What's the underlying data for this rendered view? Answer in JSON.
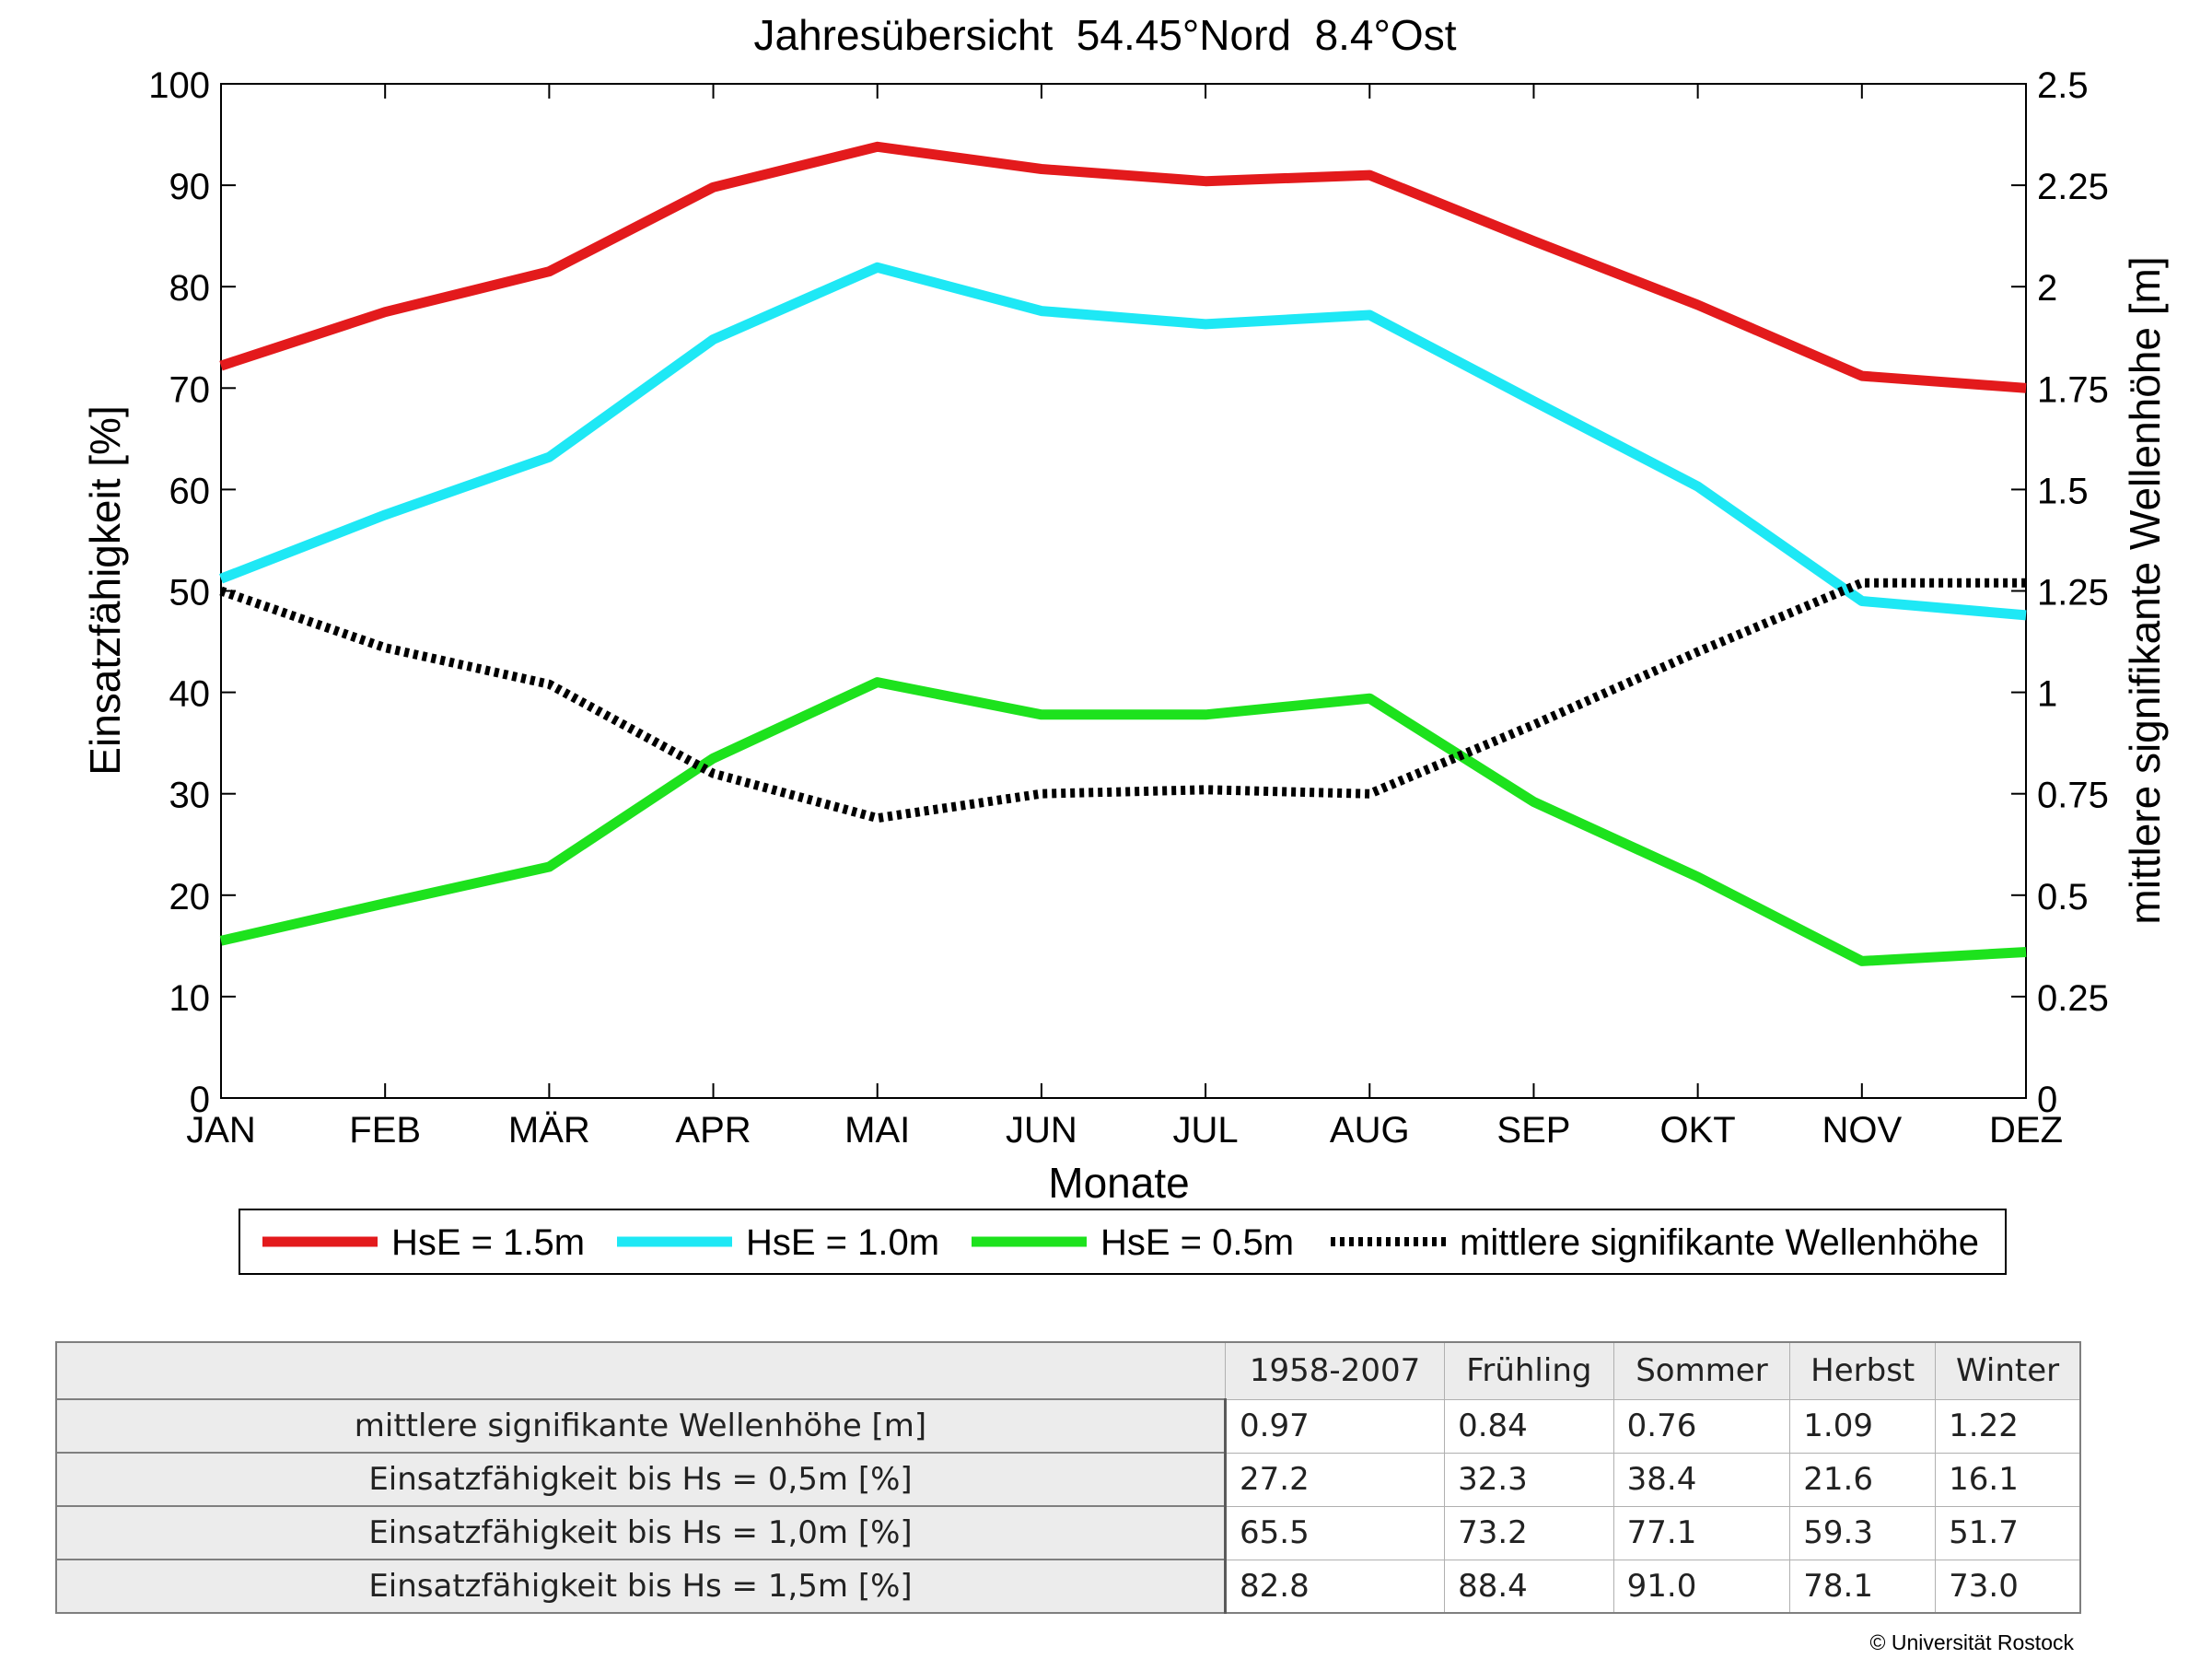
{
  "chart_data": {
    "type": "line",
    "title": "Jahresübersicht  54.45°Nord  8.4°Ost",
    "xlabel": "Monate",
    "ylabel": "Einsatzfähigkeit [%]",
    "y2label": "mittlere signifikante Wellenhöhe [m]",
    "categories": [
      "JAN",
      "FEB",
      "MÄR",
      "APR",
      "MAI",
      "JUN",
      "JUL",
      "AUG",
      "SEP",
      "OKT",
      "NOV",
      "DEZ"
    ],
    "ylim": [
      0,
      100
    ],
    "yticks": [
      0,
      10,
      20,
      30,
      40,
      50,
      60,
      70,
      80,
      90,
      100
    ],
    "y2lim": [
      0,
      2.5
    ],
    "y2ticks": [
      "0",
      "0.25",
      "0.5",
      "0.75",
      "1",
      "1.25",
      "1.5",
      "1.75",
      "2",
      "2.25",
      "2.5"
    ],
    "grid": false,
    "legend_position": "bottom",
    "series": [
      {
        "name": "HsE = 1.5m",
        "axis": "left",
        "color": "#e31a1c",
        "style": "solid",
        "values": [
          72.2,
          77.5,
          81.5,
          89.8,
          93.8,
          91.6,
          90.4,
          91.0,
          84.5,
          78.2,
          71.2,
          70.0
        ]
      },
      {
        "name": "HsE = 1.0m",
        "axis": "left",
        "color": "#1ee8f5",
        "style": "solid",
        "values": [
          51.2,
          57.5,
          63.2,
          74.8,
          81.9,
          77.6,
          76.3,
          77.2,
          68.7,
          60.3,
          49.0,
          47.6
        ]
      },
      {
        "name": "HsE = 0.5m",
        "axis": "left",
        "color": "#1de21d",
        "style": "solid",
        "values": [
          15.5,
          19.2,
          22.8,
          33.5,
          41.0,
          37.8,
          37.8,
          39.4,
          29.2,
          21.8,
          13.5,
          14.4
        ]
      },
      {
        "name": "mittlere signifikante Wellenhöhe",
        "axis": "right",
        "color": "#000000",
        "style": "dotted",
        "values": [
          1.25,
          1.11,
          1.02,
          0.8,
          0.69,
          0.75,
          0.76,
          0.75,
          0.92,
          1.1,
          1.27,
          1.27
        ]
      }
    ]
  },
  "stats_table": {
    "columns": [
      "1958-2007",
      "Frühling",
      "Sommer",
      "Herbst",
      "Winter"
    ],
    "rows": [
      {
        "label": "mittlere signifikante Wellenhöhe [m]",
        "values": [
          "0.97",
          "0.84",
          "0.76",
          "1.09",
          "1.22"
        ]
      },
      {
        "label": "Einsatzfähigkeit bis Hs = 0,5m [%]",
        "values": [
          "27.2",
          "32.3",
          "38.4",
          "21.6",
          "16.1"
        ]
      },
      {
        "label": "Einsatzfähigkeit bis Hs = 1,0m [%]",
        "values": [
          "65.5",
          "73.2",
          "77.1",
          "59.3",
          "51.7"
        ]
      },
      {
        "label": "Einsatzfähigkeit bis Hs = 1,5m [%]",
        "values": [
          "82.8",
          "88.4",
          "91.0",
          "78.1",
          "73.0"
        ]
      }
    ]
  },
  "copyright": "© Universität Rostock"
}
